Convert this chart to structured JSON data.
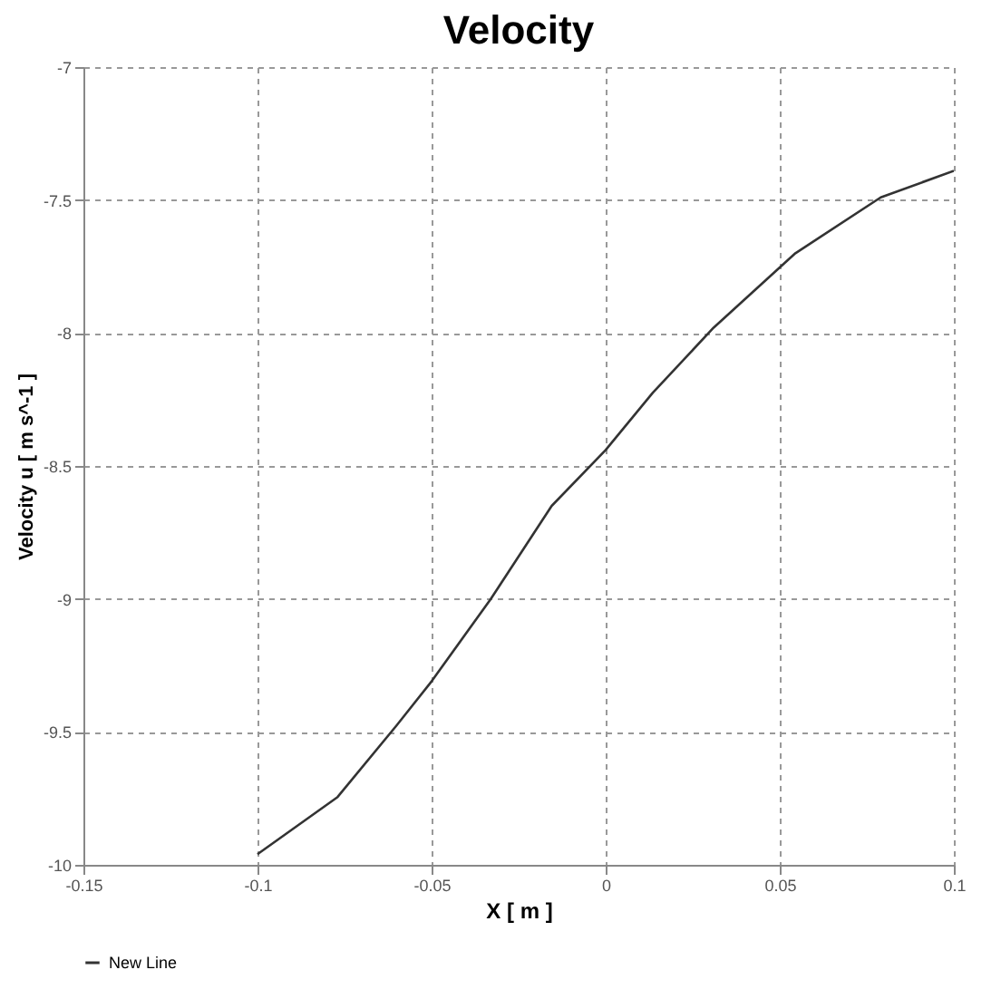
{
  "chart_data": {
    "type": "line",
    "title": "Velocity",
    "xlabel": "X [ m ]",
    "ylabel": "Velocity u [ m s^-1 ]",
    "x": [
      -0.1,
      -0.077,
      -0.06,
      -0.05,
      -0.033,
      -0.0155,
      0,
      0.0135,
      0.031,
      0.0545,
      0.079,
      0.1
    ],
    "series": [
      {
        "name": "New Line",
        "color": "#333333",
        "values": [
          -9.96,
          -9.745,
          -9.475,
          -9.31,
          -9.0,
          -8.65,
          -8.44,
          -8.225,
          -7.98,
          -7.7,
          -7.49,
          -7.39
        ]
      }
    ],
    "xlim": [
      -0.15,
      0.1
    ],
    "xticks": [
      -0.15,
      -0.1,
      -0.05,
      0,
      0.05,
      0.1
    ],
    "ylim": [
      -10,
      -7
    ],
    "yticks": [
      -10,
      -9.5,
      -9,
      -8.5,
      -8,
      -7.5,
      -7
    ],
    "grid": true,
    "legend": "bottom",
    "marker": "none",
    "line_style": "solid"
  }
}
